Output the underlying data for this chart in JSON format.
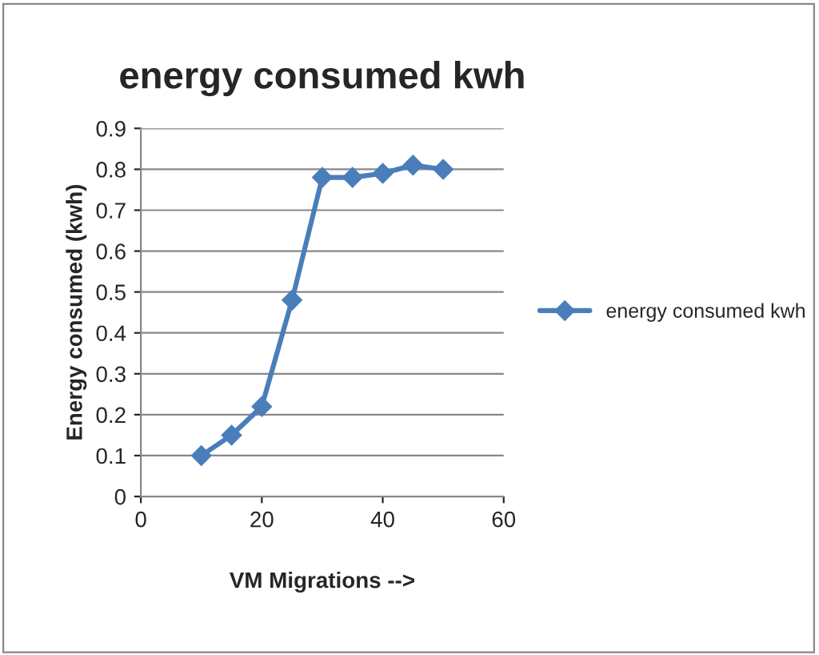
{
  "chart_data": {
    "type": "line",
    "title": "energy consumed kwh",
    "xlabel": "VM Migrations -->",
    "ylabel": "Energy consumed (kwh)",
    "x": [
      10,
      15,
      20,
      25,
      30,
      35,
      40,
      45,
      50
    ],
    "series": [
      {
        "name": "energy consumed kwh",
        "color": "#4a7ebb",
        "values": [
          0.1,
          0.15,
          0.22,
          0.48,
          0.78,
          0.78,
          0.79,
          0.81,
          0.8
        ]
      }
    ],
    "xlim": [
      0,
      60
    ],
    "xticks": [
      0,
      20,
      40,
      60
    ],
    "ylim": [
      0,
      0.9
    ],
    "yticks": [
      0,
      0.1,
      0.2,
      0.3,
      0.4,
      0.5,
      0.6,
      0.7,
      0.8,
      0.9
    ],
    "grid": "y",
    "legend": "right",
    "marker": "diamond",
    "line_style": "solid"
  }
}
